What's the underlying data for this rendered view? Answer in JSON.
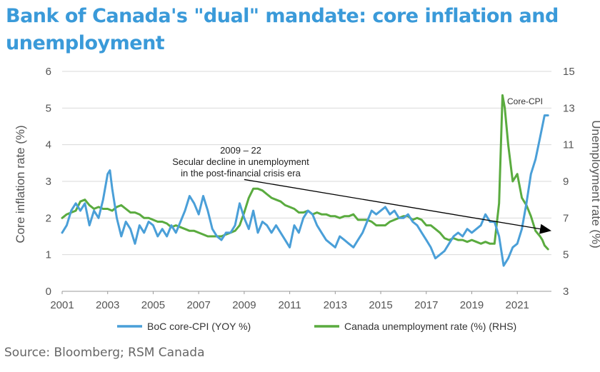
{
  "title": "Bank of Canada's \"dual\" mandate: core inflation and unemployment",
  "source": "Source: Bloomberg; RSM Canada",
  "chart_data": {
    "type": "line",
    "title": "Bank of Canada's \"dual\" mandate: core inflation and unemployment",
    "xlabel": "",
    "ylabel": "Core inflation rate (%)",
    "y2label": "Unemployment rate (%)",
    "xlim": [
      2001,
      2022.5
    ],
    "ylim": [
      0,
      6
    ],
    "y2lim": [
      3,
      15
    ],
    "xticks": [
      "2001",
      "2003",
      "2005",
      "2007",
      "2009",
      "2011",
      "2013",
      "2015",
      "2017",
      "2019",
      "2021"
    ],
    "yticks": [
      "0",
      "1",
      "2",
      "3",
      "4",
      "5",
      "6"
    ],
    "y2ticks": [
      "3",
      "5",
      "7",
      "9",
      "11",
      "13",
      "15"
    ],
    "grid": "horizontal",
    "legend_position": "bottom",
    "colors": {
      "core_cpi": "#4a9fd8",
      "unemployment": "#5aab3f",
      "trend": "#000000"
    },
    "series": [
      {
        "name": "BoC core-CPI (YOY %)",
        "axis": "left",
        "x": [
          2001.0,
          2001.2,
          2001.4,
          2001.6,
          2001.8,
          2002.0,
          2002.2,
          2002.4,
          2002.6,
          2002.8,
          2003.0,
          2003.1,
          2003.2,
          2003.4,
          2003.6,
          2003.8,
          2004.0,
          2004.2,
          2004.4,
          2004.6,
          2004.8,
          2005.0,
          2005.2,
          2005.4,
          2005.6,
          2005.8,
          2006.0,
          2006.2,
          2006.4,
          2006.6,
          2006.8,
          2007.0,
          2007.2,
          2007.4,
          2007.6,
          2007.8,
          2008.0,
          2008.2,
          2008.4,
          2008.6,
          2008.8,
          2009.0,
          2009.2,
          2009.4,
          2009.6,
          2009.8,
          2010.0,
          2010.2,
          2010.4,
          2010.6,
          2010.8,
          2011.0,
          2011.2,
          2011.4,
          2011.6,
          2011.8,
          2012.0,
          2012.2,
          2012.4,
          2012.6,
          2012.8,
          2013.0,
          2013.2,
          2013.4,
          2013.6,
          2013.8,
          2014.0,
          2014.2,
          2014.4,
          2014.6,
          2014.8,
          2015.0,
          2015.2,
          2015.4,
          2015.6,
          2015.8,
          2016.0,
          2016.2,
          2016.4,
          2016.6,
          2016.8,
          2017.0,
          2017.2,
          2017.4,
          2017.6,
          2017.8,
          2018.0,
          2018.2,
          2018.4,
          2018.6,
          2018.8,
          2019.0,
          2019.2,
          2019.4,
          2019.6,
          2019.8,
          2020.0,
          2020.2,
          2020.4,
          2020.6,
          2020.8,
          2021.0,
          2021.2,
          2021.4,
          2021.6,
          2021.8,
          2022.0,
          2022.2,
          2022.35
        ],
        "values": [
          1.6,
          1.8,
          2.2,
          2.4,
          2.2,
          2.4,
          1.8,
          2.2,
          2.0,
          2.5,
          3.2,
          3.3,
          2.8,
          2.0,
          1.5,
          1.9,
          1.7,
          1.3,
          1.8,
          1.6,
          1.9,
          1.8,
          1.5,
          1.7,
          1.5,
          1.8,
          1.6,
          1.9,
          2.2,
          2.6,
          2.4,
          2.1,
          2.6,
          2.2,
          1.7,
          1.5,
          1.4,
          1.6,
          1.6,
          1.8,
          2.4,
          2.0,
          1.7,
          2.2,
          1.6,
          1.9,
          1.8,
          1.6,
          1.8,
          1.6,
          1.4,
          1.2,
          1.8,
          1.6,
          2.0,
          2.2,
          2.1,
          1.8,
          1.6,
          1.4,
          1.3,
          1.2,
          1.5,
          1.4,
          1.3,
          1.2,
          1.4,
          1.6,
          1.9,
          2.2,
          2.1,
          2.2,
          2.3,
          2.1,
          2.2,
          2.0,
          2.0,
          2.1,
          1.9,
          1.8,
          1.6,
          1.4,
          1.2,
          0.9,
          1.0,
          1.1,
          1.3,
          1.5,
          1.6,
          1.5,
          1.7,
          1.6,
          1.7,
          1.8,
          2.1,
          1.9,
          1.9,
          1.5,
          0.7,
          0.9,
          1.2,
          1.3,
          1.7,
          2.4,
          3.2,
          3.6,
          4.2,
          4.8,
          4.8
        ]
      },
      {
        "name": "Canada unemployment rate (%) (RHS)",
        "axis": "right",
        "x": [
          2001.0,
          2001.2,
          2001.4,
          2001.6,
          2001.8,
          2002.0,
          2002.2,
          2002.4,
          2002.6,
          2002.8,
          2003.0,
          2003.2,
          2003.4,
          2003.6,
          2003.8,
          2004.0,
          2004.2,
          2004.4,
          2004.6,
          2004.8,
          2005.0,
          2005.2,
          2005.4,
          2005.6,
          2005.8,
          2006.0,
          2006.2,
          2006.4,
          2006.6,
          2006.8,
          2007.0,
          2007.2,
          2007.4,
          2007.6,
          2007.8,
          2008.0,
          2008.2,
          2008.4,
          2008.6,
          2008.8,
          2009.0,
          2009.2,
          2009.4,
          2009.6,
          2009.8,
          2010.0,
          2010.2,
          2010.4,
          2010.6,
          2010.8,
          2011.0,
          2011.2,
          2011.4,
          2011.6,
          2011.8,
          2012.0,
          2012.2,
          2012.4,
          2012.6,
          2012.8,
          2013.0,
          2013.2,
          2013.4,
          2013.6,
          2013.8,
          2014.0,
          2014.2,
          2014.4,
          2014.6,
          2014.8,
          2015.0,
          2015.2,
          2015.4,
          2015.6,
          2015.8,
          2016.0,
          2016.2,
          2016.4,
          2016.6,
          2016.8,
          2017.0,
          2017.2,
          2017.4,
          2017.6,
          2017.8,
          2018.0,
          2018.2,
          2018.4,
          2018.6,
          2018.8,
          2019.0,
          2019.2,
          2019.4,
          2019.6,
          2019.8,
          2020.0,
          2020.2,
          2020.35,
          2020.45,
          2020.6,
          2020.8,
          2021.0,
          2021.2,
          2021.4,
          2021.6,
          2021.8,
          2022.0,
          2022.1,
          2022.2,
          2022.35
        ],
        "values": [
          7.0,
          7.2,
          7.3,
          7.4,
          7.9,
          8.0,
          7.7,
          7.5,
          7.6,
          7.5,
          7.5,
          7.4,
          7.6,
          7.7,
          7.5,
          7.3,
          7.3,
          7.2,
          7.0,
          7.0,
          6.9,
          6.8,
          6.8,
          6.7,
          6.5,
          6.6,
          6.5,
          6.4,
          6.3,
          6.3,
          6.2,
          6.1,
          6.0,
          6.0,
          6.0,
          6.0,
          6.1,
          6.2,
          6.3,
          6.6,
          7.3,
          8.1,
          8.6,
          8.6,
          8.5,
          8.3,
          8.1,
          8.0,
          7.9,
          7.7,
          7.6,
          7.5,
          7.3,
          7.3,
          7.4,
          7.2,
          7.3,
          7.2,
          7.2,
          7.1,
          7.1,
          7.0,
          7.1,
          7.1,
          7.2,
          6.9,
          6.9,
          6.9,
          6.8,
          6.6,
          6.6,
          6.6,
          6.8,
          6.9,
          7.0,
          7.1,
          7.1,
          6.9,
          7.0,
          6.9,
          6.6,
          6.6,
          6.4,
          6.2,
          5.9,
          5.8,
          5.9,
          5.8,
          5.8,
          5.7,
          5.8,
          5.7,
          5.6,
          5.7,
          5.6,
          5.6,
          7.8,
          13.7,
          13.0,
          11.0,
          9.0,
          9.4,
          8.1,
          7.7,
          7.1,
          6.3,
          6.0,
          5.8,
          5.5,
          5.3
        ]
      }
    ],
    "annotations": [
      {
        "text": "2009 – 22"
      },
      {
        "text": "Secular  decline in unemployment"
      },
      {
        "text": "in the post-financial crisis era"
      },
      {
        "text": "Core-CPI"
      }
    ],
    "trend_arrow": {
      "x": [
        2009.0,
        2022.5
      ],
      "y2": [
        9.1,
        6.3
      ]
    }
  }
}
